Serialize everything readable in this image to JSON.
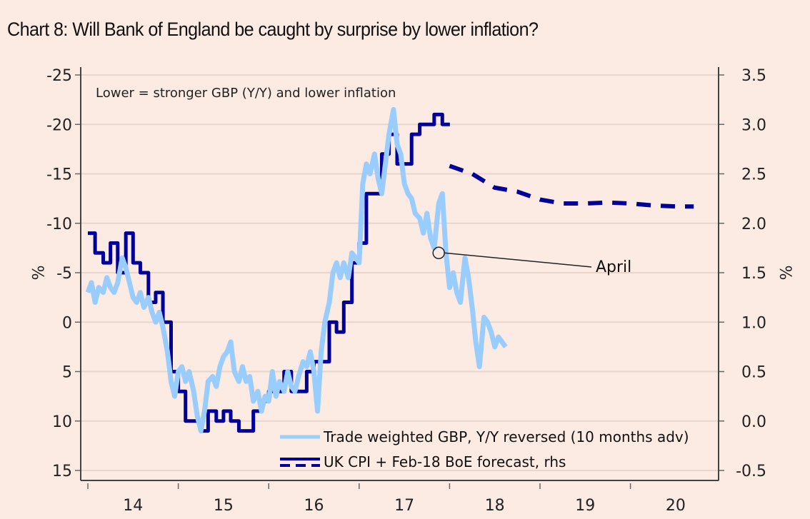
{
  "chart_data": {
    "type": "line",
    "title": "Chart 8: Will Bank of England be caught by surprise by lower inflation?",
    "note": "Lower = stronger GBP (Y/Y) and lower inflation",
    "ylabel_left": "%",
    "ylabel_right": "%",
    "y_left": {
      "ticks": [
        -25,
        -20,
        -15,
        -10,
        -5,
        0,
        5,
        10,
        15
      ],
      "tick_labels": [
        "-25",
        "-20",
        "-15",
        "-10",
        "-5",
        "0",
        "5",
        "10",
        "15"
      ],
      "range": [
        -25,
        15
      ],
      "reversed_display": true
    },
    "y_right": {
      "ticks": [
        3.5,
        3.0,
        2.5,
        2.0,
        1.5,
        1.0,
        0.5,
        0.0,
        -0.5
      ],
      "tick_labels": [
        "3.5",
        "3.0",
        "2.5",
        "2.0",
        "1.5",
        "1.0",
        "0.5",
        "0.0",
        "-0.5"
      ],
      "range": [
        -0.5,
        3.5
      ]
    },
    "x_axis": {
      "range": [
        2014.0,
        2020.7
      ],
      "tick_labels": [
        "14",
        "15",
        "16",
        "17",
        "18",
        "19",
        "20"
      ]
    },
    "grid": "horizontal",
    "legend": {
      "placement": "bottom-center",
      "entries": [
        {
          "label": "Trade weighted GBP, Y/Y reversed (10 months adv)",
          "color": "#99ccff",
          "style": "solid"
        },
        {
          "label": "UK CPI + Feb-18 BoE forecast, rhs",
          "color": "#000099",
          "style": "solid+dashed"
        }
      ]
    },
    "annotation": {
      "label": "April",
      "x": 2017.88,
      "y_left": -7
    },
    "series": [
      {
        "name": "Trade weighted GBP, Y/Y reversed (10 months adv)",
        "axis": "left",
        "color": "#99ccff",
        "x": [
          2014.0,
          2014.04,
          2014.08,
          2014.12,
          2014.17,
          2014.21,
          2014.25,
          2014.29,
          2014.33,
          2014.38,
          2014.42,
          2014.46,
          2014.5,
          2014.54,
          2014.58,
          2014.62,
          2014.67,
          2014.71,
          2014.75,
          2014.79,
          2014.83,
          2014.88,
          2014.92,
          2014.96,
          2015.0,
          2015.04,
          2015.08,
          2015.12,
          2015.17,
          2015.21,
          2015.25,
          2015.29,
          2015.33,
          2015.38,
          2015.42,
          2015.46,
          2015.5,
          2015.54,
          2015.58,
          2015.62,
          2015.67,
          2015.71,
          2015.75,
          2015.79,
          2015.83,
          2015.88,
          2015.92,
          2015.96,
          2016.0,
          2016.04,
          2016.08,
          2016.12,
          2016.17,
          2016.21,
          2016.25,
          2016.29,
          2016.33,
          2016.38,
          2016.42,
          2016.46,
          2016.5,
          2016.54,
          2016.58,
          2016.62,
          2016.67,
          2016.71,
          2016.75,
          2016.79,
          2016.83,
          2016.88,
          2016.92,
          2016.96,
          2017.0,
          2017.04,
          2017.08,
          2017.12,
          2017.17,
          2017.21,
          2017.25,
          2017.29,
          2017.33,
          2017.38,
          2017.42,
          2017.46,
          2017.5,
          2017.54,
          2017.58,
          2017.62,
          2017.67,
          2017.71,
          2017.75,
          2017.79,
          2017.83,
          2017.88,
          2017.92,
          2017.96,
          2018.0,
          2018.04,
          2018.08,
          2018.12,
          2018.17,
          2018.21,
          2018.25,
          2018.29,
          2018.33,
          2018.38,
          2018.42,
          2018.46,
          2018.5,
          2018.54,
          2018.58,
          2018.62
        ],
        "values": [
          -3.0,
          -4.0,
          -2.0,
          -3.5,
          -3.0,
          -4.5,
          -3.5,
          -3.0,
          -4.0,
          -6.5,
          -5.5,
          -4.0,
          -2.5,
          -2.0,
          -3.0,
          -1.5,
          -2.5,
          -1.0,
          0.0,
          -1.0,
          0.5,
          3.0,
          6.0,
          7.5,
          5.0,
          4.5,
          6.0,
          5.0,
          7.0,
          9.5,
          11.0,
          9.0,
          6.0,
          5.5,
          6.5,
          4.5,
          3.5,
          3.0,
          2.0,
          5.0,
          6.0,
          4.5,
          6.0,
          5.5,
          8.0,
          7.0,
          9.0,
          7.5,
          8.0,
          5.0,
          7.5,
          6.0,
          7.0,
          5.0,
          6.5,
          7.0,
          5.5,
          4.0,
          4.5,
          3.0,
          5.0,
          9.0,
          3.0,
          0.0,
          -2.0,
          -5.0,
          -6.0,
          -4.5,
          -6.0,
          -4.5,
          -7.0,
          -6.5,
          -6.0,
          -14.0,
          -16.0,
          -15.0,
          -17.0,
          -14.5,
          -13.0,
          -16.0,
          -19.0,
          -21.5,
          -18.0,
          -17.0,
          -14.0,
          -13.0,
          -12.5,
          -11.0,
          -10.5,
          -9.0,
          -11.0,
          -8.5,
          -7.5,
          -12.0,
          -13.0,
          -7.0,
          -3.5,
          -5.0,
          -3.0,
          -2.0,
          -6.5,
          -4.5,
          -1.5,
          2.0,
          4.5,
          -0.5,
          0.0,
          1.0,
          2.5,
          1.5,
          2.0,
          2.5
        ]
      },
      {
        "name": "UK CPI (actual)",
        "axis": "right",
        "color": "#000099",
        "style": "step",
        "x": [
          2014.0,
          2014.08,
          2014.17,
          2014.25,
          2014.33,
          2014.42,
          2014.5,
          2014.58,
          2014.67,
          2014.75,
          2014.83,
          2014.92,
          2015.0,
          2015.08,
          2015.17,
          2015.25,
          2015.33,
          2015.42,
          2015.5,
          2015.58,
          2015.67,
          2015.75,
          2015.83,
          2015.92,
          2016.0,
          2016.08,
          2016.17,
          2016.25,
          2016.33,
          2016.42,
          2016.5,
          2016.58,
          2016.67,
          2016.75,
          2016.83,
          2016.92,
          2017.0,
          2017.08,
          2017.17,
          2017.25,
          2017.33,
          2017.42,
          2017.5,
          2017.58,
          2017.67,
          2017.75,
          2017.83,
          2017.92
        ],
        "values": [
          1.9,
          1.7,
          1.6,
          1.8,
          1.5,
          1.9,
          1.6,
          1.5,
          1.2,
          1.3,
          1.0,
          0.5,
          0.3,
          0.0,
          0.0,
          -0.1,
          0.1,
          0.0,
          0.1,
          0.0,
          -0.1,
          -0.1,
          0.1,
          0.2,
          0.3,
          0.3,
          0.5,
          0.3,
          0.3,
          0.5,
          0.6,
          0.6,
          1.0,
          0.9,
          1.2,
          1.6,
          1.8,
          2.3,
          2.3,
          2.7,
          2.9,
          2.6,
          2.6,
          2.9,
          3.0,
          3.0,
          3.1,
          3.0
        ]
      },
      {
        "name": "Feb-18 BoE forecast",
        "axis": "right",
        "color": "#000099",
        "style": "dashed",
        "x": [
          2018.0,
          2018.25,
          2018.5,
          2018.75,
          2019.0,
          2019.25,
          2019.5,
          2019.75,
          2020.0,
          2020.25,
          2020.5,
          2020.7
        ],
        "values": [
          2.58,
          2.5,
          2.36,
          2.32,
          2.24,
          2.2,
          2.2,
          2.21,
          2.2,
          2.18,
          2.17,
          2.17
        ]
      }
    ]
  }
}
